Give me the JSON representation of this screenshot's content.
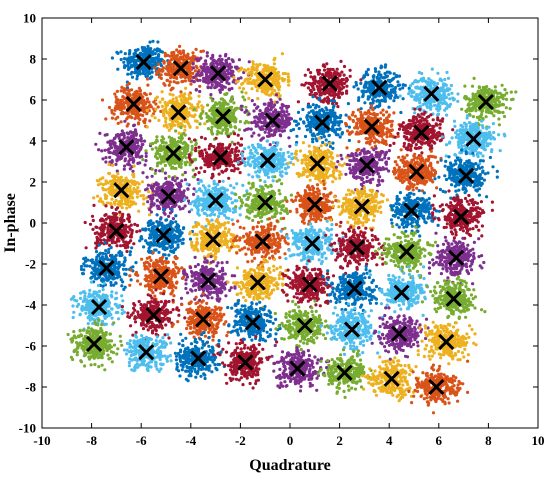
{
  "chart_data": {
    "type": "scatter",
    "xlabel": "Quadrature",
    "ylabel": "In-phase",
    "xlim": [
      -10,
      10
    ],
    "ylim": [
      -10,
      10
    ],
    "xticks": [
      -10,
      -8,
      -6,
      -4,
      -2,
      0,
      2,
      4,
      6,
      8,
      10
    ],
    "yticks": [
      -10,
      -8,
      -6,
      -4,
      -2,
      0,
      2,
      4,
      6,
      8,
      10
    ],
    "grid": false,
    "legend": "none",
    "marker": "x",
    "cluster_spread": 0.42,
    "colors": [
      "#0072bd",
      "#d95319",
      "#edb120",
      "#7e2f8e",
      "#77ac30",
      "#4dbeee",
      "#a2142f"
    ],
    "centroids": [
      {
        "x": -5.9,
        "y": 7.85,
        "color": "#0072bd"
      },
      {
        "x": -4.4,
        "y": 7.55,
        "color": "#d95319"
      },
      {
        "x": -2.9,
        "y": 7.3,
        "color": "#7e2f8e"
      },
      {
        "x": -1.0,
        "y": 7.0,
        "color": "#edb120"
      },
      {
        "x": 1.6,
        "y": 6.8,
        "color": "#a2142f"
      },
      {
        "x": 3.6,
        "y": 6.6,
        "color": "#0072bd"
      },
      {
        "x": 5.7,
        "y": 6.3,
        "color": "#4dbeee"
      },
      {
        "x": 7.9,
        "y": 5.9,
        "color": "#77ac30"
      },
      {
        "x": -6.3,
        "y": 5.8,
        "color": "#d95319"
      },
      {
        "x": -4.5,
        "y": 5.4,
        "color": "#edb120"
      },
      {
        "x": -2.7,
        "y": 5.2,
        "color": "#77ac30"
      },
      {
        "x": -0.7,
        "y": 5.0,
        "color": "#7e2f8e"
      },
      {
        "x": 1.3,
        "y": 4.9,
        "color": "#0072bd"
      },
      {
        "x": 3.3,
        "y": 4.7,
        "color": "#d95319"
      },
      {
        "x": 5.3,
        "y": 4.4,
        "color": "#a2142f"
      },
      {
        "x": 7.4,
        "y": 4.1,
        "color": "#4dbeee"
      },
      {
        "x": -6.6,
        "y": 3.7,
        "color": "#7e2f8e"
      },
      {
        "x": -4.7,
        "y": 3.4,
        "color": "#77ac30"
      },
      {
        "x": -2.8,
        "y": 3.2,
        "color": "#a2142f"
      },
      {
        "x": -0.9,
        "y": 3.05,
        "color": "#4dbeee"
      },
      {
        "x": 1.1,
        "y": 2.9,
        "color": "#edb120"
      },
      {
        "x": 3.1,
        "y": 2.8,
        "color": "#7e2f8e"
      },
      {
        "x": 5.1,
        "y": 2.5,
        "color": "#d95319"
      },
      {
        "x": 7.1,
        "y": 2.3,
        "color": "#0072bd"
      },
      {
        "x": -6.8,
        "y": 1.6,
        "color": "#edb120"
      },
      {
        "x": -4.9,
        "y": 1.3,
        "color": "#7e2f8e"
      },
      {
        "x": -3.0,
        "y": 1.1,
        "color": "#4dbeee"
      },
      {
        "x": -1.0,
        "y": 1.0,
        "color": "#77ac30"
      },
      {
        "x": 1.0,
        "y": 0.9,
        "color": "#d95319"
      },
      {
        "x": 2.9,
        "y": 0.8,
        "color": "#edb120"
      },
      {
        "x": 4.9,
        "y": 0.6,
        "color": "#0072bd"
      },
      {
        "x": 6.9,
        "y": 0.3,
        "color": "#a2142f"
      },
      {
        "x": -7.0,
        "y": -0.4,
        "color": "#a2142f"
      },
      {
        "x": -5.1,
        "y": -0.6,
        "color": "#0072bd"
      },
      {
        "x": -3.1,
        "y": -0.8,
        "color": "#edb120"
      },
      {
        "x": -1.1,
        "y": -0.9,
        "color": "#d95319"
      },
      {
        "x": 0.9,
        "y": -1.0,
        "color": "#4dbeee"
      },
      {
        "x": 2.7,
        "y": -1.2,
        "color": "#a2142f"
      },
      {
        "x": 4.7,
        "y": -1.4,
        "color": "#77ac30"
      },
      {
        "x": 6.7,
        "y": -1.7,
        "color": "#7e2f8e"
      },
      {
        "x": -7.4,
        "y": -2.2,
        "color": "#0072bd"
      },
      {
        "x": -5.2,
        "y": -2.6,
        "color": "#d95319"
      },
      {
        "x": -3.3,
        "y": -2.8,
        "color": "#7e2f8e"
      },
      {
        "x": -1.3,
        "y": -2.9,
        "color": "#edb120"
      },
      {
        "x": 0.8,
        "y": -3.0,
        "color": "#a2142f"
      },
      {
        "x": 2.6,
        "y": -3.2,
        "color": "#0072bd"
      },
      {
        "x": 4.5,
        "y": -3.4,
        "color": "#4dbeee"
      },
      {
        "x": 6.6,
        "y": -3.7,
        "color": "#77ac30"
      },
      {
        "x": -7.7,
        "y": -4.1,
        "color": "#4dbeee"
      },
      {
        "x": -5.5,
        "y": -4.5,
        "color": "#a2142f"
      },
      {
        "x": -3.5,
        "y": -4.7,
        "color": "#d95319"
      },
      {
        "x": -1.5,
        "y": -4.85,
        "color": "#0072bd"
      },
      {
        "x": 0.6,
        "y": -5.0,
        "color": "#77ac30"
      },
      {
        "x": 2.5,
        "y": -5.2,
        "color": "#4dbeee"
      },
      {
        "x": 4.4,
        "y": -5.4,
        "color": "#7e2f8e"
      },
      {
        "x": 6.3,
        "y": -5.8,
        "color": "#edb120"
      },
      {
        "x": -7.9,
        "y": -5.9,
        "color": "#77ac30"
      },
      {
        "x": -5.8,
        "y": -6.3,
        "color": "#4dbeee"
      },
      {
        "x": -3.7,
        "y": -6.6,
        "color": "#0072bd"
      },
      {
        "x": -1.8,
        "y": -6.8,
        "color": "#a2142f"
      },
      {
        "x": 0.3,
        "y": -7.1,
        "color": "#7e2f8e"
      },
      {
        "x": 2.2,
        "y": -7.3,
        "color": "#77ac30"
      },
      {
        "x": 4.1,
        "y": -7.6,
        "color": "#edb120"
      },
      {
        "x": 5.9,
        "y": -8.0,
        "color": "#d95319"
      }
    ]
  }
}
